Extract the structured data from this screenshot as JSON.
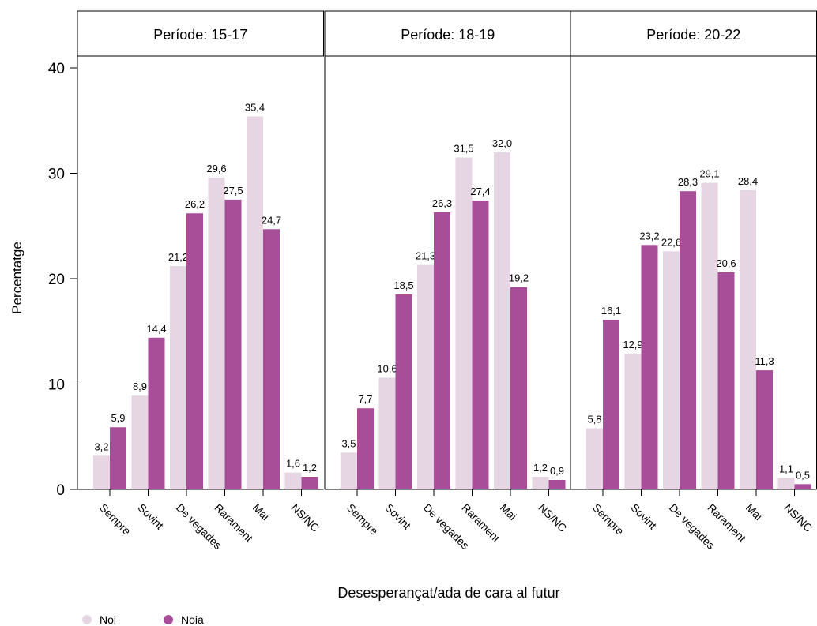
{
  "chart_data": {
    "type": "bar",
    "xlabel": "Desesperançat/ada de cara al futur",
    "ylabel": "Percentatge",
    "ylim": [
      0,
      40
    ],
    "yticks": [
      0,
      10,
      20,
      30,
      40
    ],
    "grid": false,
    "legend_position": "bottom-left",
    "categories": [
      "Sempre",
      "Sovint",
      "De vegades",
      "Rarament",
      "Mai",
      "NS/NC"
    ],
    "series_names": [
      "Noi",
      "Noia"
    ],
    "colors": {
      "Noi": "#e6d6e4",
      "Noia": "#a84d98"
    },
    "panels": [
      {
        "title": "Període: 15-17",
        "series": [
          {
            "name": "Noi",
            "values": [
              3.2,
              8.9,
              21.2,
              29.6,
              35.4,
              1.6
            ],
            "labels": [
              "3,2",
              "8,9",
              "21,2",
              "29,6",
              "35,4",
              "1,6"
            ]
          },
          {
            "name": "Noia",
            "values": [
              5.9,
              14.4,
              26.2,
              27.5,
              24.7,
              1.2
            ],
            "labels": [
              "5,9",
              "14,4",
              "26,2",
              "27,5",
              "24,7",
              "1,2"
            ]
          }
        ]
      },
      {
        "title": "Període: 18-19",
        "series": [
          {
            "name": "Noi",
            "values": [
              3.5,
              10.6,
              21.3,
              31.5,
              32.0,
              1.2
            ],
            "labels": [
              "3,5",
              "10,6",
              "21,3",
              "31,5",
              "32,0",
              "1,2"
            ]
          },
          {
            "name": "Noia",
            "values": [
              7.7,
              18.5,
              26.3,
              27.4,
              19.2,
              0.9
            ],
            "labels": [
              "7,7",
              "18,5",
              "26,3",
              "27,4",
              "19,2",
              "0,9"
            ]
          }
        ]
      },
      {
        "title": "Període: 20-22",
        "series": [
          {
            "name": "Noi",
            "values": [
              5.8,
              12.9,
              22.6,
              29.1,
              28.4,
              1.1
            ],
            "labels": [
              "5,8",
              "12,9",
              "22,6",
              "29,1",
              "28,4",
              "1,1"
            ]
          },
          {
            "name": "Noia",
            "values": [
              16.1,
              23.2,
              28.3,
              20.6,
              11.3,
              0.5
            ],
            "labels": [
              "16,1",
              "23,2",
              "28,3",
              "20,6",
              "11,3",
              "0,5"
            ]
          }
        ]
      }
    ]
  }
}
